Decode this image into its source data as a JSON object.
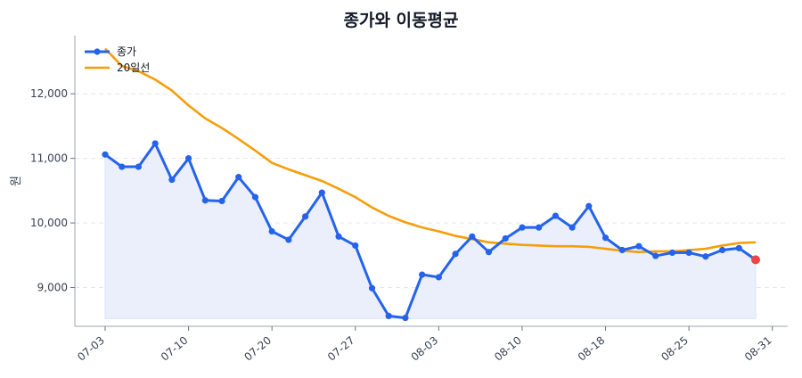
{
  "chart_data": {
    "type": "line",
    "title": "종가와 이동평균",
    "ylabel": "원",
    "xlabel": "",
    "ylim": [
      8400,
      12900
    ],
    "y_ticks": [
      9000,
      10000,
      11000,
      12000
    ],
    "y_tick_labels": [
      "9,000",
      "10,000",
      "11,000",
      "12,000"
    ],
    "x_tick_labels": [
      "07-03",
      "07-10",
      "07-20",
      "07-27",
      "08-03",
      "08-10",
      "08-18",
      "08-25",
      "08-31"
    ],
    "x_tick_indices": [
      0,
      5,
      10,
      15,
      20,
      25,
      30,
      35,
      40
    ],
    "grid": true,
    "legend_position": "top-left",
    "colors": {
      "close": "#2563eb",
      "ma20": "#f59e0b",
      "fill": "#e8eefb",
      "last_marker": "#ef4444"
    },
    "series": [
      {
        "name": "종가",
        "values": [
          11060,
          10870,
          10870,
          11230,
          10670,
          11000,
          10350,
          10340,
          10710,
          10400,
          9870,
          9740,
          10100,
          10470,
          9790,
          9650,
          8990,
          8560,
          8530,
          9200,
          9160,
          9520,
          9790,
          9550,
          9760,
          9930,
          9930,
          10110,
          9930,
          10260,
          9770,
          9580,
          9640,
          9490,
          9540,
          9540,
          9480,
          9580,
          9610,
          9430
        ]
      },
      {
        "name": "20일선",
        "values": [
          12700,
          12430,
          12350,
          12220,
          12050,
          11820,
          11620,
          11470,
          11300,
          11120,
          10930,
          10830,
          10740,
          10650,
          10530,
          10400,
          10240,
          10110,
          10010,
          9930,
          9870,
          9800,
          9750,
          9700,
          9680,
          9660,
          9650,
          9640,
          9640,
          9630,
          9600,
          9570,
          9550,
          9560,
          9560,
          9580,
          9600,
          9650,
          9690,
          9700
        ]
      }
    ]
  }
}
